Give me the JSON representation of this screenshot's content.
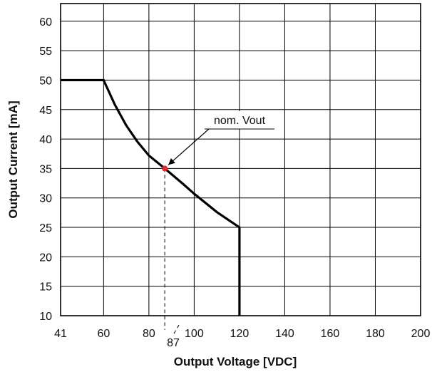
{
  "chart_data": {
    "type": "line",
    "title": "",
    "xlabel": "Output Voltage [VDC]",
    "ylabel": "Output Current [mA]",
    "xlim": [
      41,
      200
    ],
    "ylim": [
      10,
      63
    ],
    "grid": true,
    "x_ticks": [
      41,
      60,
      80,
      100,
      120,
      140,
      160,
      180,
      200
    ],
    "x_tick_labels": [
      "41",
      "60",
      "80",
      "100",
      "120",
      "140",
      "160",
      "180",
      "200"
    ],
    "y_ticks": [
      10,
      15,
      20,
      25,
      30,
      35,
      40,
      45,
      50,
      55,
      60
    ],
    "y_tick_labels": [
      "10",
      "15",
      "20",
      "25",
      "30",
      "35",
      "40",
      "45",
      "50",
      "55",
      "60"
    ],
    "series": [
      {
        "color": "#000000",
        "x": [
          41,
          60,
          65,
          70,
          75,
          80,
          87,
          95,
          100,
          110,
          120,
          120
        ],
        "y": [
          50,
          50,
          45.8,
          42.3,
          39.5,
          37.2,
          35,
          32.4,
          30.7,
          27.6,
          25,
          10
        ]
      }
    ],
    "annotations": [
      {
        "text": "nom. Vout",
        "x": 87,
        "y": 35,
        "marker_color": "#e8262b"
      },
      {
        "text": "87",
        "x": 87
      }
    ]
  }
}
